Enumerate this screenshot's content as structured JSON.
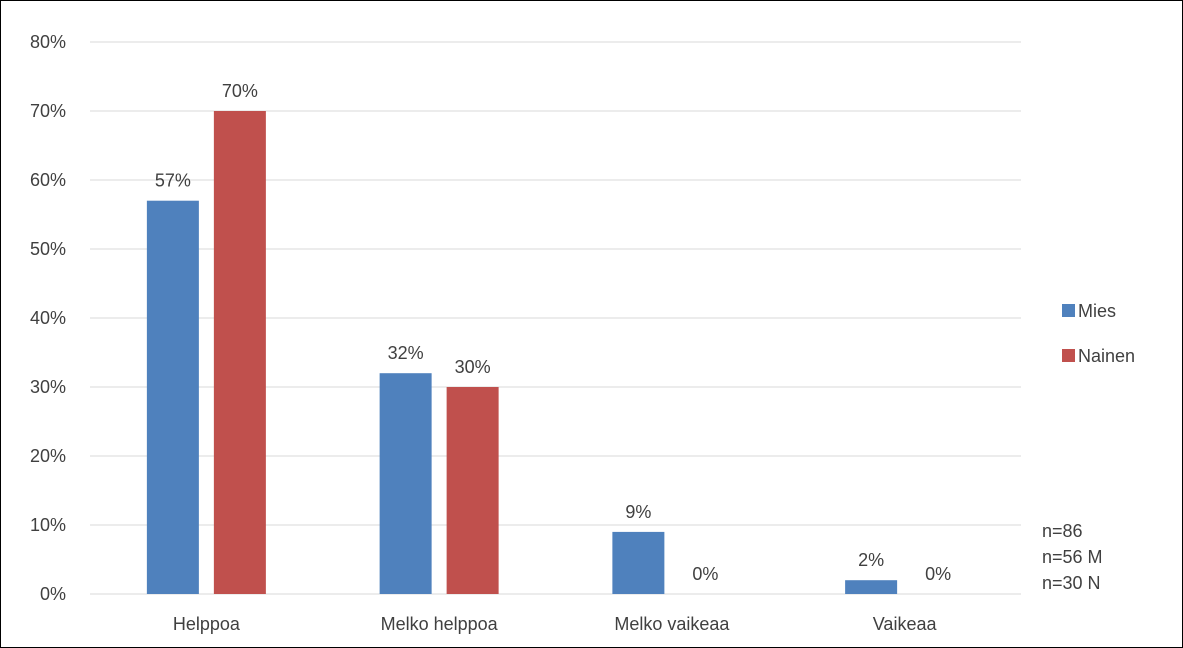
{
  "chart_data": {
    "type": "bar",
    "categories": [
      "Helppoa",
      "Melko helppoa",
      "Melko vaikeaa",
      "Vaikeaa"
    ],
    "series": [
      {
        "name": "Mies",
        "color": "#4f81bd",
        "values": [
          57,
          32,
          9,
          2
        ],
        "labels": [
          "57%",
          "32%",
          "9%",
          "2%"
        ]
      },
      {
        "name": "Nainen",
        "color": "#c0504d",
        "values": [
          70,
          30,
          0,
          0
        ],
        "labels": [
          "70%",
          "30%",
          "0%",
          "0%"
        ]
      }
    ],
    "y_ticks": [
      "0%",
      "10%",
      "20%",
      "30%",
      "40%",
      "50%",
      "60%",
      "70%",
      "80%"
    ],
    "ylim": [
      0,
      80
    ],
    "grid": true,
    "legend_position": "right",
    "gridline_color": "#d9d9d9",
    "annotations": [
      "n=86",
      "n=56 M",
      "n=30 N"
    ]
  }
}
